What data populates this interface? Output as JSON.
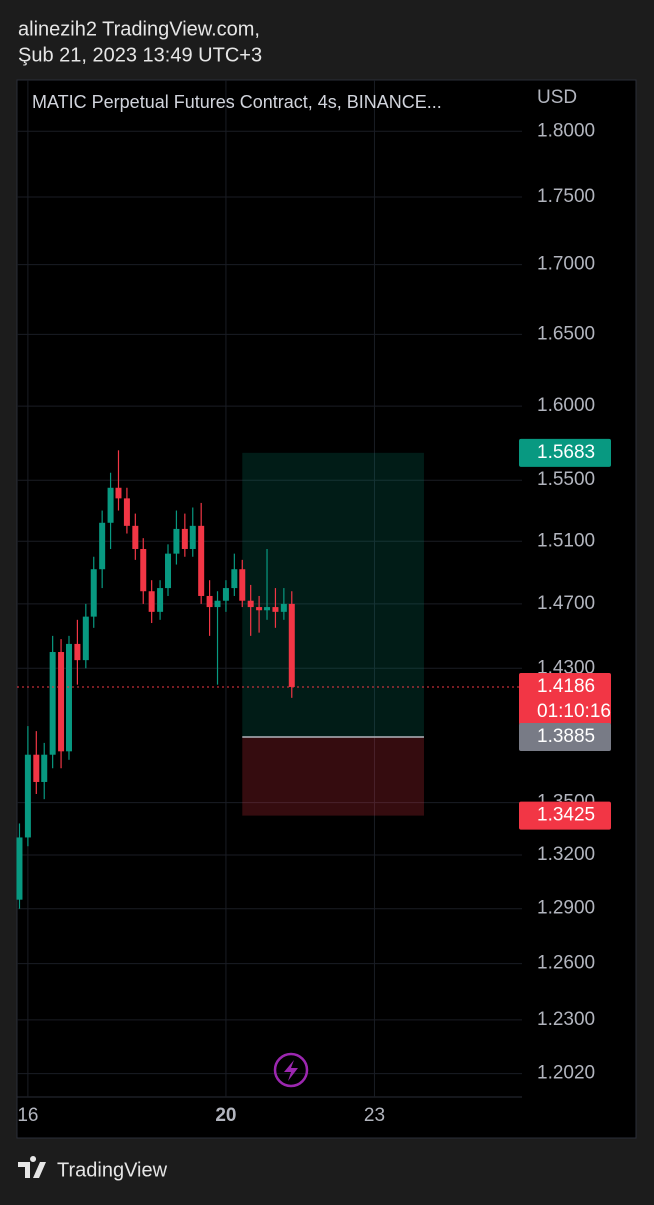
{
  "header": {
    "user": "alinezih2 TradingView.com,",
    "timestamp": "Şub 21, 2023 13:49 UTC+3"
  },
  "footer": {
    "brand": "TradingView"
  },
  "chart_data": {
    "type": "candlestick",
    "title": "MATIC Perpetual Futures Contract, 4s, BINANCE...",
    "y_axis_label": "USD",
    "log_scale": true,
    "grid": true,
    "up_color": "#089981",
    "down_color": "#f23645",
    "x": [
      15.83,
      16.0,
      16.17,
      16.33,
      16.5,
      16.67,
      16.83,
      17.0,
      17.17,
      17.33,
      17.5,
      17.67,
      17.83,
      18.0,
      18.17,
      18.33,
      18.5,
      18.67,
      18.83,
      19.0,
      19.17,
      19.33,
      19.5,
      19.67,
      19.83,
      20.0,
      20.17,
      20.33,
      20.5,
      20.67,
      20.83,
      21.0,
      21.17,
      21.33
    ],
    "open": [
      1.295,
      1.33,
      1.378,
      1.362,
      1.378,
      1.44,
      1.38,
      1.445,
      1.435,
      1.462,
      1.492,
      1.522,
      1.545,
      1.538,
      1.52,
      1.505,
      1.478,
      1.465,
      1.48,
      1.502,
      1.518,
      1.505,
      1.52,
      1.475,
      1.468,
      1.472,
      1.48,
      1.492,
      1.472,
      1.468,
      1.466,
      1.468,
      1.465,
      1.47
    ],
    "high": [
      1.338,
      1.395,
      1.392,
      1.385,
      1.45,
      1.448,
      1.45,
      1.46,
      1.47,
      1.5,
      1.53,
      1.555,
      1.57,
      1.545,
      1.528,
      1.512,
      1.485,
      1.485,
      1.508,
      1.53,
      1.528,
      1.532,
      1.535,
      1.485,
      1.478,
      1.485,
      1.502,
      1.498,
      1.482,
      1.475,
      1.505,
      1.48,
      1.48,
      1.478
    ],
    "low": [
      1.29,
      1.325,
      1.355,
      1.352,
      1.37,
      1.37,
      1.375,
      1.42,
      1.43,
      1.455,
      1.48,
      1.505,
      1.53,
      1.515,
      1.498,
      1.47,
      1.458,
      1.46,
      1.475,
      1.495,
      1.5,
      1.5,
      1.47,
      1.45,
      1.42,
      1.465,
      1.475,
      1.468,
      1.45,
      1.452,
      1.46,
      1.455,
      1.46,
      1.412
    ],
    "close": [
      1.33,
      1.378,
      1.362,
      1.378,
      1.44,
      1.38,
      1.445,
      1.435,
      1.462,
      1.492,
      1.522,
      1.545,
      1.538,
      1.52,
      1.505,
      1.478,
      1.465,
      1.48,
      1.502,
      1.518,
      1.505,
      1.52,
      1.475,
      1.468,
      1.472,
      1.48,
      1.492,
      1.472,
      1.468,
      1.466,
      1.468,
      1.465,
      1.47,
      1.4186
    ],
    "xlim": [
      15.78,
      25.98
    ],
    "ylim": [
      1.19,
      1.84
    ],
    "xticks": [
      16,
      20,
      23
    ],
    "yticks": [
      {
        "value": 1.8,
        "label": "1.8000"
      },
      {
        "value": 1.75,
        "label": "1.7500"
      },
      {
        "value": 1.7,
        "label": "1.7000"
      },
      {
        "value": 1.65,
        "label": "1.6500"
      },
      {
        "value": 1.6,
        "label": "1.6000"
      },
      {
        "value": 1.55,
        "label": "1.5500"
      },
      {
        "value": 1.51,
        "label": "1.5100"
      },
      {
        "value": 1.47,
        "label": "1.4700"
      },
      {
        "value": 1.43,
        "label": "1.4300"
      },
      {
        "value": 1.35,
        "label": "1.3500"
      },
      {
        "value": 1.32,
        "label": "1.3200"
      },
      {
        "value": 1.29,
        "label": "1.2900"
      },
      {
        "value": 1.26,
        "label": "1.2600"
      },
      {
        "value": 1.23,
        "label": "1.2300"
      },
      {
        "value": 1.202,
        "label": "1.2020"
      }
    ],
    "position": {
      "target": 1.5683,
      "entry": 1.3885,
      "stop": 1.3425,
      "x_range": [
        20.33,
        24.0
      ],
      "target_color": "#089981",
      "entry_color": "#787b86",
      "stop_color": "#f23645"
    },
    "countdown": "01:10:16"
  }
}
